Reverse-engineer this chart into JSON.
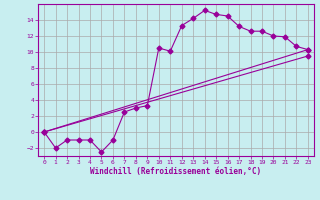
{
  "xlabel": "Windchill (Refroidissement éolien,°C)",
  "bg_color": "#c8eef0",
  "line_color": "#990099",
  "grid_color": "#aaaaaa",
  "spine_color": "#990099",
  "line1_x": [
    0,
    1,
    2,
    3,
    4,
    5,
    6,
    7,
    8,
    9,
    10,
    11,
    12,
    13,
    14,
    15,
    16,
    17,
    18,
    19,
    20,
    21,
    22,
    23
  ],
  "line1_y": [
    0,
    -2,
    -1,
    -1,
    -1,
    -2.5,
    -1,
    2.5,
    3,
    3.3,
    10.5,
    10.1,
    13.3,
    14.2,
    15.2,
    14.7,
    14.5,
    13.2,
    12.6,
    12.6,
    12,
    11.9,
    10.7,
    10.3
  ],
  "line2_x": [
    0,
    23
  ],
  "line2_y": [
    0,
    10.3
  ],
  "line3_x": [
    0,
    23
  ],
  "line3_y": [
    0,
    9.5
  ],
  "ylim": [
    -3,
    16
  ],
  "xlim": [
    -0.5,
    23.5
  ],
  "yticks": [
    -2,
    0,
    2,
    4,
    6,
    8,
    10,
    12,
    14
  ],
  "xticks": [
    0,
    1,
    2,
    3,
    4,
    5,
    6,
    7,
    8,
    9,
    10,
    11,
    12,
    13,
    14,
    15,
    16,
    17,
    18,
    19,
    20,
    21,
    22,
    23
  ]
}
